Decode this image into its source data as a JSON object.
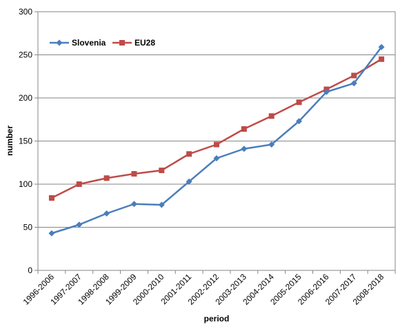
{
  "chart_data": {
    "type": "line",
    "categories": [
      "1996-2006",
      "1997-2007",
      "1998-2008",
      "1999-2009",
      "2000-2010",
      "2001-2011",
      "2002-2012",
      "2003-2013",
      "2004-2014",
      "2005-2015",
      "2006-2016",
      "2007-2017",
      "2008-2018"
    ],
    "series": [
      {
        "name": "Slovenia",
        "color": "#4a7ebb",
        "marker": "diamond",
        "values": [
          43,
          53,
          66,
          77,
          76,
          103,
          130,
          141,
          146,
          173,
          207,
          217,
          259
        ]
      },
      {
        "name": "EU28",
        "color": "#be4b48",
        "marker": "square",
        "values": [
          84,
          100,
          107,
          112,
          116,
          135,
          146,
          164,
          179,
          195,
          210,
          226,
          245
        ]
      }
    ],
    "xlabel": "period",
    "ylabel": "number",
    "ylim": [
      0,
      300
    ],
    "yticks": [
      0,
      50,
      100,
      150,
      200,
      250,
      300
    ],
    "grid": true,
    "legend_position": "top-left"
  }
}
